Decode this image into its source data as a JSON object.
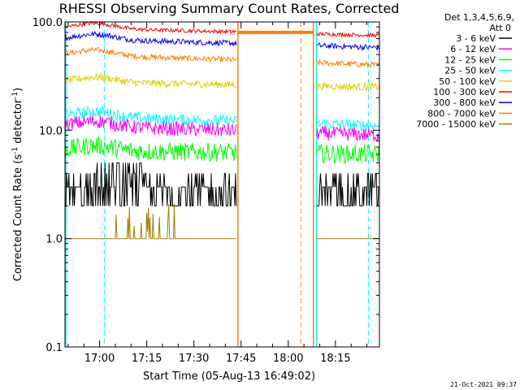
{
  "chart_data": {
    "type": "line",
    "title": "RHESSI Observing Summary Count Rates, Corrected",
    "xlabel": "Start Time (05-Aug-13 16:49:02)",
    "ylabel_pre": "Corrected Count Rate (s",
    "ylabel_sup1": "-1",
    "ylabel_mid": " detector",
    "ylabel_sup2": "-1",
    "ylabel_post": ")",
    "yscale": "log",
    "ylim": [
      0.1,
      100
    ],
    "xlim_minutes": [
      0,
      100
    ],
    "x_ticks": [
      {
        "label": "17:00",
        "minute": 11
      },
      {
        "label": "17:15",
        "minute": 26
      },
      {
        "label": "17:30",
        "minute": 41
      },
      {
        "label": "17:45",
        "minute": 56
      },
      {
        "label": "18:00",
        "minute": 71
      },
      {
        "label": "18:15",
        "minute": 86
      }
    ],
    "y_ticks": [
      {
        "label": "100.0",
        "value": 100
      },
      {
        "label": "10.0",
        "value": 10
      },
      {
        "label": "1.0",
        "value": 1
      },
      {
        "label": "0.1",
        "value": 0.1
      }
    ],
    "legend_header": [
      "Det 1,3,4,5,6,9,",
      "Att 0"
    ],
    "flag_label": "S",
    "timestamp": "21-Oct-2021 09:37",
    "segments_minutes": [
      [
        0,
        54.5
      ],
      [
        80,
        100
      ]
    ],
    "series": [
      {
        "name": "3 - 6 keV",
        "color": "#000000",
        "level": [
          3.0,
          2.5
        ],
        "noise": 0.5
      },
      {
        "name": "6 - 12 keV",
        "color": "#ff00ff",
        "level": [
          11.0,
          9.0
        ],
        "noise": 0.15
      },
      {
        "name": "12 - 25 keV",
        "color": "#00ff00",
        "level": [
          6.5,
          6.0
        ],
        "noise": 0.2
      },
      {
        "name": "25 - 50 keV",
        "color": "#00ffff",
        "level": [
          13.5,
          11.0
        ],
        "noise": 0.12
      },
      {
        "name": "50 - 100 keV",
        "color": "#e0d000",
        "level": [
          28.0,
          25.0
        ],
        "noise": 0.08
      },
      {
        "name": "100 - 300 keV",
        "color": "#ff0000",
        "level": [
          88.0,
          75.0
        ],
        "noise": 0.04
      },
      {
        "name": "300 - 800 keV",
        "color": "#0000ff",
        "level": [
          70.0,
          58.0
        ],
        "noise": 0.06
      },
      {
        "name": "800 - 7000 keV",
        "color": "#ff8000",
        "level": [
          50.0,
          40.0
        ],
        "noise": 0.06
      },
      {
        "name": "7000 - 15000 keV",
        "color": "#a08000",
        "level": [
          1.0,
          1.0
        ],
        "noise": 0.0
      }
    ],
    "annotations": {
      "saa_band_minutes": [
        55,
        79
      ],
      "saa_band_level": 80,
      "saa_color": "#ff8000",
      "cyan_dashed_minutes": [
        12.5,
        96.5
      ],
      "orange_dashed_minutes": [
        75
      ],
      "cyan_solid_minutes": [
        0,
        80
      ],
      "orange_solid_minutes": [
        55,
        79
      ]
    }
  }
}
